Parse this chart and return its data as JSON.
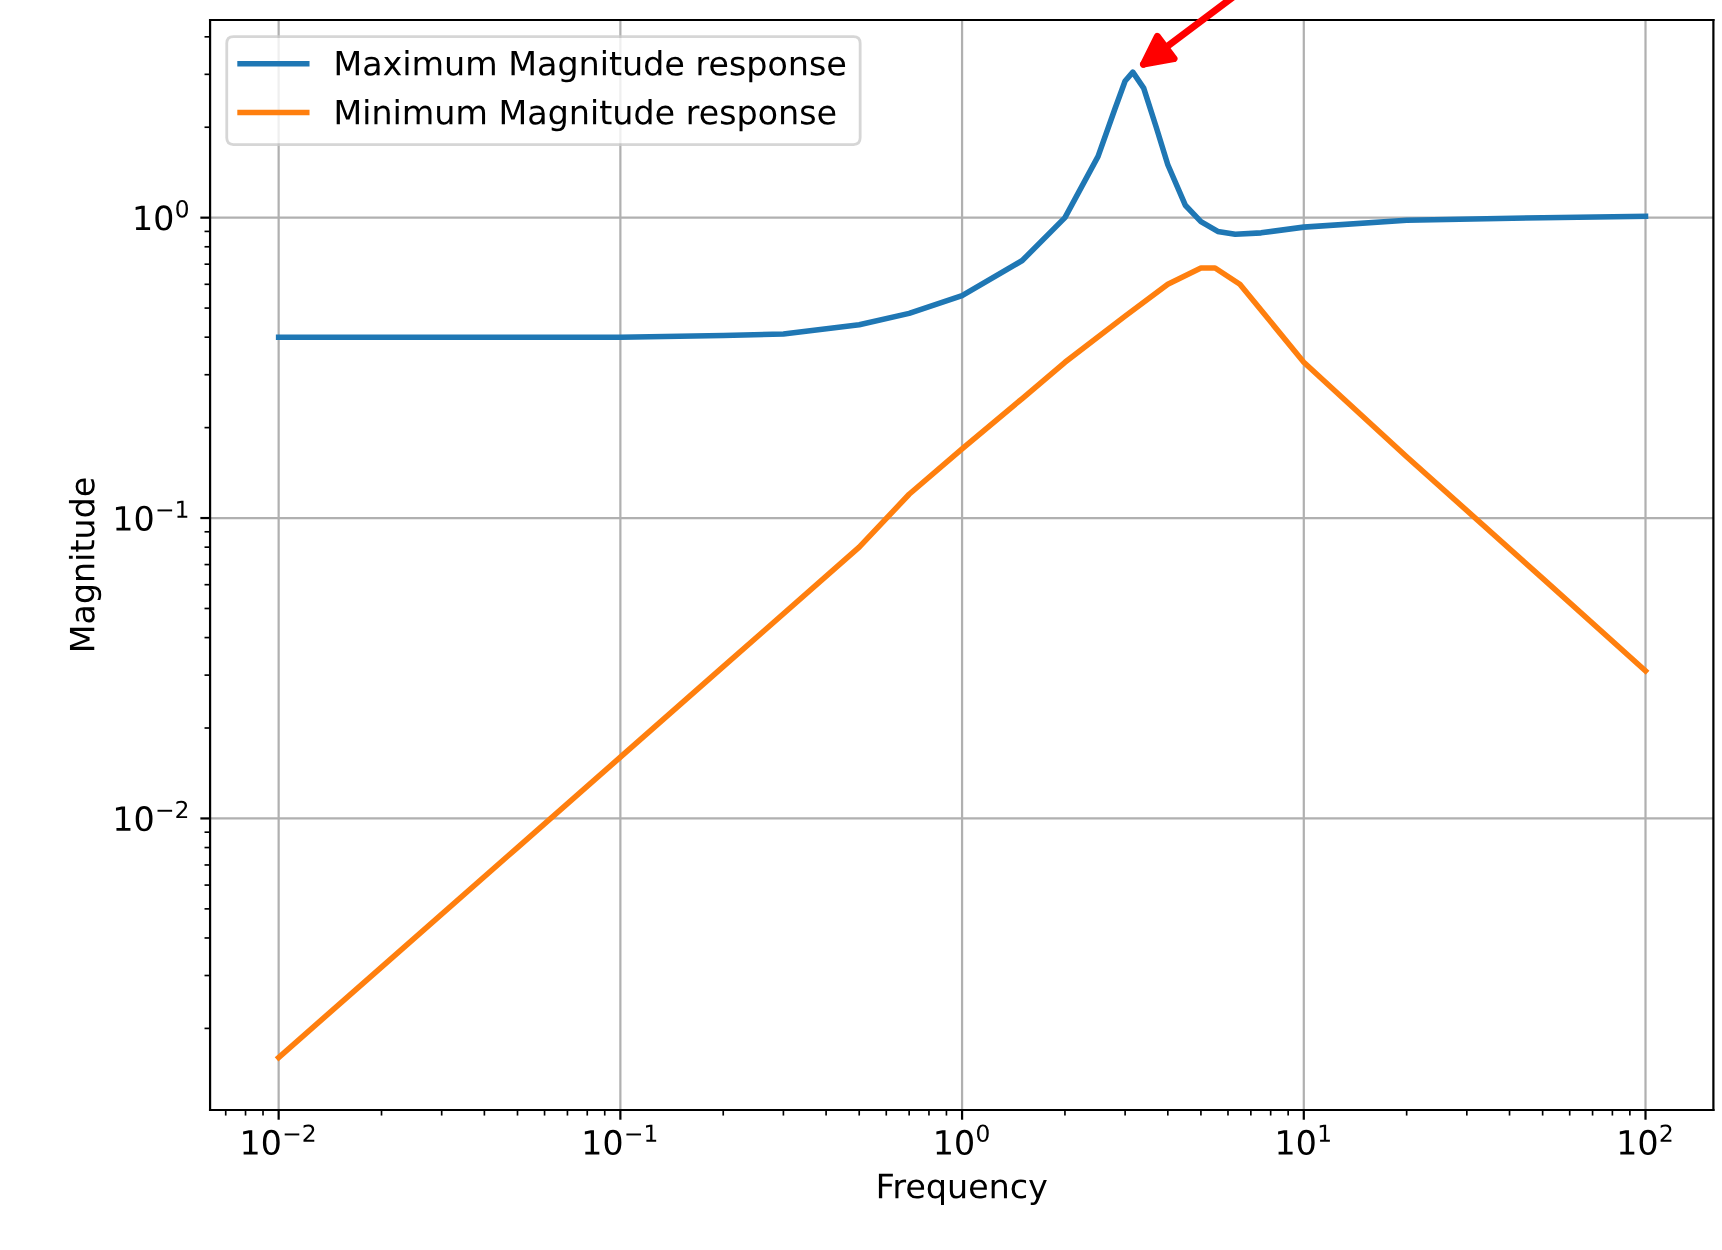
{
  "chart_data": {
    "type": "line",
    "xlabel": "Frequency",
    "ylabel": "Magnitude",
    "log": "xy",
    "grid": true,
    "legend": "top left",
    "line_style": "solid",
    "xlim": [
      0.0063,
      158
    ],
    "ylim": [
      0.00107,
      4.55
    ],
    "xticks": [
      {
        "value": 0.01,
        "label": "10$^{−2}$"
      },
      {
        "value": 0.1,
        "label": "10$^{−1}$"
      },
      {
        "value": 1,
        "label": "10$^{0}$"
      },
      {
        "value": 10,
        "label": "10$^{1}$"
      },
      {
        "value": 100,
        "label": "10$^{2}$"
      }
    ],
    "yticks": [
      {
        "value": 0.01,
        "label": "10$^{−2}$"
      },
      {
        "value": 0.1,
        "label": "10$^{−1}$"
      },
      {
        "value": 1,
        "label": "10$^{0}$"
      }
    ],
    "series": [
      {
        "name": "Maximum Magnitude response",
        "color": "#1f77b4",
        "x": [
          0.01,
          0.1,
          0.2,
          0.3,
          0.5,
          0.7,
          1.0,
          1.5,
          2.0,
          2.5,
          2.8,
          3.0,
          3.16,
          3.4,
          3.7,
          4.0,
          4.5,
          5.0,
          5.6,
          6.3,
          7.5,
          10,
          20,
          50,
          100
        ],
        "values": [
          0.4,
          0.4,
          0.405,
          0.41,
          0.44,
          0.48,
          0.55,
          0.72,
          1.0,
          1.6,
          2.3,
          2.85,
          3.05,
          2.7,
          2.0,
          1.5,
          1.1,
          0.97,
          0.9,
          0.88,
          0.89,
          0.93,
          0.98,
          1.0,
          1.01
        ]
      },
      {
        "name": "Minimum Magnitude response",
        "color": "#ff7f0e",
        "x": [
          0.01,
          0.02,
          0.05,
          0.1,
          0.2,
          0.5,
          0.7,
          1,
          1.5,
          2,
          3,
          4,
          5,
          5.5,
          6.5,
          8,
          10,
          20,
          50,
          100
        ],
        "values": [
          0.0016,
          0.0032,
          0.008,
          0.016,
          0.032,
          0.08,
          0.12,
          0.17,
          0.25,
          0.33,
          0.47,
          0.6,
          0.68,
          0.68,
          0.6,
          0.45,
          0.33,
          0.16,
          0.063,
          0.031
        ]
      }
    ]
  }
}
